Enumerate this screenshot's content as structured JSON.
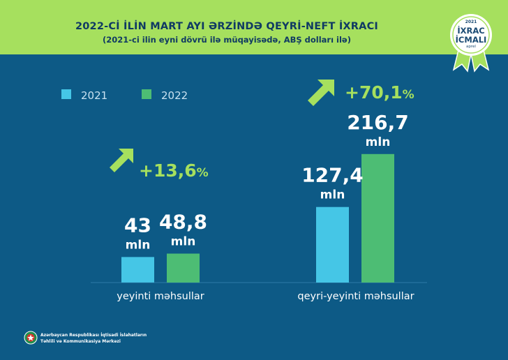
{
  "header": {
    "title": "2022-Cİ İLİN MART AYI ƏRZİNDƏ QEYRİ-NEFT İXRACI",
    "subtitle": "(2021-ci ilin eyni dövrü ilə müqayisədə, ABŞ dolları ilə)"
  },
  "badge": {
    "year": "2021",
    "line1": "İXRAC",
    "line2": "İCMALI",
    "month": "aprel",
    "colors": {
      "ring": "#ffffff",
      "ribbon": "#a6e05e"
    }
  },
  "footer": {
    "org_line1": "Azərbaycan Respublikası İqtisadi İslahatların",
    "org_line2": "Təhlili və Kommunikasiya Mərkəzi",
    "emblem_icon": "state-emblem-icon"
  },
  "colors": {
    "background": "#0d5a86",
    "header": "#a6e05e",
    "series_2021": "#45c6e6",
    "series_2022": "#4dbd74",
    "growth": "#a6e05e"
  },
  "chart_data": {
    "type": "bar",
    "categories": [
      "yeyinti məhsullar",
      "qeyri-yeyinti məhsullar"
    ],
    "series": [
      {
        "name": "2021",
        "values": [
          43,
          127.4
        ],
        "labels": [
          "43",
          "127,4"
        ]
      },
      {
        "name": "2022",
        "values": [
          48.8,
          216.7
        ],
        "labels": [
          "48,8",
          "216,7"
        ]
      }
    ],
    "unit": "mln",
    "growth": [
      {
        "value": 13.6,
        "label": "+13,6",
        "suffix": "%"
      },
      {
        "value": 70.1,
        "label": "+70,1",
        "suffix": "%"
      }
    ],
    "legend_position": "top-left",
    "grid": false
  }
}
